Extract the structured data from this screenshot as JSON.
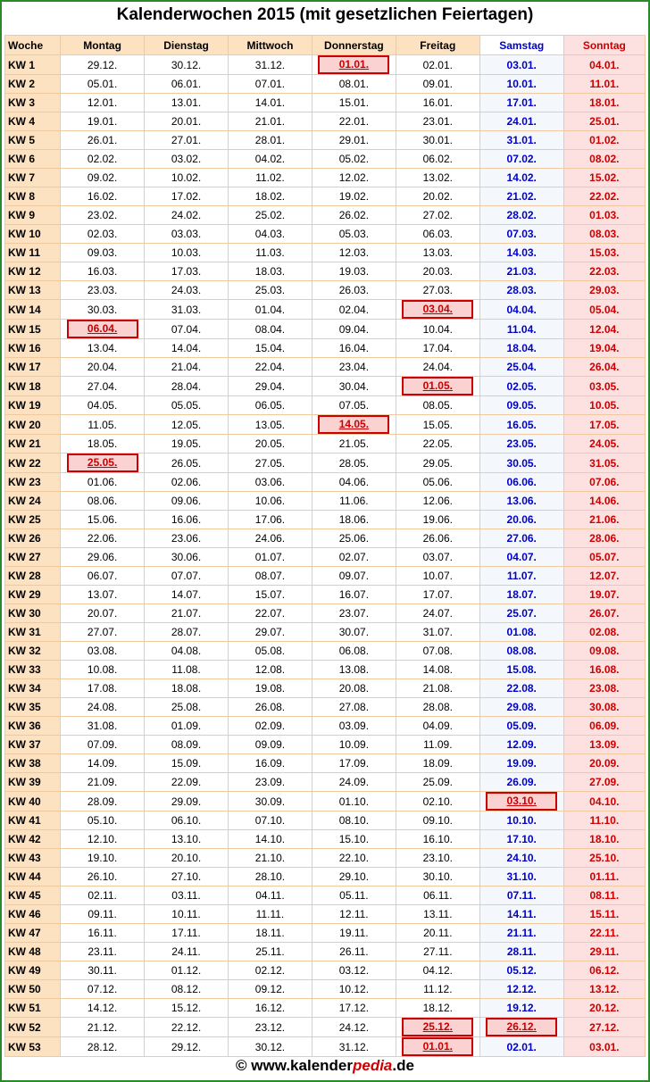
{
  "title": "Kalenderwochen 2015 (mit gesetzlichen Feiertagen)",
  "headers": [
    "Woche",
    "Montag",
    "Dienstag",
    "Mittwoch",
    "Donnerstag",
    "Freitag",
    "Samstag",
    "Sonntag"
  ],
  "holiday_note": "Holiday cells are marked in the rows below by [col index] lists",
  "rows": [
    {
      "kw": "KW 1",
      "days": [
        "29.12.",
        "30.12.",
        "31.12.",
        "01.01.",
        "02.01.",
        "03.01.",
        "04.01."
      ],
      "hol": [
        3
      ]
    },
    {
      "kw": "KW 2",
      "days": [
        "05.01.",
        "06.01.",
        "07.01.",
        "08.01.",
        "09.01.",
        "10.01.",
        "11.01."
      ],
      "hol": []
    },
    {
      "kw": "KW 3",
      "days": [
        "12.01.",
        "13.01.",
        "14.01.",
        "15.01.",
        "16.01.",
        "17.01.",
        "18.01."
      ],
      "hol": []
    },
    {
      "kw": "KW 4",
      "days": [
        "19.01.",
        "20.01.",
        "21.01.",
        "22.01.",
        "23.01.",
        "24.01.",
        "25.01."
      ],
      "hol": []
    },
    {
      "kw": "KW 5",
      "days": [
        "26.01.",
        "27.01.",
        "28.01.",
        "29.01.",
        "30.01.",
        "31.01.",
        "01.02."
      ],
      "hol": []
    },
    {
      "kw": "KW 6",
      "days": [
        "02.02.",
        "03.02.",
        "04.02.",
        "05.02.",
        "06.02.",
        "07.02.",
        "08.02."
      ],
      "hol": []
    },
    {
      "kw": "KW 7",
      "days": [
        "09.02.",
        "10.02.",
        "11.02.",
        "12.02.",
        "13.02.",
        "14.02.",
        "15.02."
      ],
      "hol": []
    },
    {
      "kw": "KW 8",
      "days": [
        "16.02.",
        "17.02.",
        "18.02.",
        "19.02.",
        "20.02.",
        "21.02.",
        "22.02."
      ],
      "hol": []
    },
    {
      "kw": "KW 9",
      "days": [
        "23.02.",
        "24.02.",
        "25.02.",
        "26.02.",
        "27.02.",
        "28.02.",
        "01.03."
      ],
      "hol": []
    },
    {
      "kw": "KW 10",
      "days": [
        "02.03.",
        "03.03.",
        "04.03.",
        "05.03.",
        "06.03.",
        "07.03.",
        "08.03."
      ],
      "hol": []
    },
    {
      "kw": "KW 11",
      "days": [
        "09.03.",
        "10.03.",
        "11.03.",
        "12.03.",
        "13.03.",
        "14.03.",
        "15.03."
      ],
      "hol": []
    },
    {
      "kw": "KW 12",
      "days": [
        "16.03.",
        "17.03.",
        "18.03.",
        "19.03.",
        "20.03.",
        "21.03.",
        "22.03."
      ],
      "hol": []
    },
    {
      "kw": "KW 13",
      "days": [
        "23.03.",
        "24.03.",
        "25.03.",
        "26.03.",
        "27.03.",
        "28.03.",
        "29.03."
      ],
      "hol": []
    },
    {
      "kw": "KW 14",
      "days": [
        "30.03.",
        "31.03.",
        "01.04.",
        "02.04.",
        "03.04.",
        "04.04.",
        "05.04."
      ],
      "hol": [
        4
      ]
    },
    {
      "kw": "KW 15",
      "days": [
        "06.04.",
        "07.04.",
        "08.04.",
        "09.04.",
        "10.04.",
        "11.04.",
        "12.04."
      ],
      "hol": [
        0
      ]
    },
    {
      "kw": "KW 16",
      "days": [
        "13.04.",
        "14.04.",
        "15.04.",
        "16.04.",
        "17.04.",
        "18.04.",
        "19.04."
      ],
      "hol": []
    },
    {
      "kw": "KW 17",
      "days": [
        "20.04.",
        "21.04.",
        "22.04.",
        "23.04.",
        "24.04.",
        "25.04.",
        "26.04."
      ],
      "hol": []
    },
    {
      "kw": "KW 18",
      "days": [
        "27.04.",
        "28.04.",
        "29.04.",
        "30.04.",
        "01.05.",
        "02.05.",
        "03.05."
      ],
      "hol": [
        4
      ]
    },
    {
      "kw": "KW 19",
      "days": [
        "04.05.",
        "05.05.",
        "06.05.",
        "07.05.",
        "08.05.",
        "09.05.",
        "10.05."
      ],
      "hol": []
    },
    {
      "kw": "KW 20",
      "days": [
        "11.05.",
        "12.05.",
        "13.05.",
        "14.05.",
        "15.05.",
        "16.05.",
        "17.05."
      ],
      "hol": [
        3
      ]
    },
    {
      "kw": "KW 21",
      "days": [
        "18.05.",
        "19.05.",
        "20.05.",
        "21.05.",
        "22.05.",
        "23.05.",
        "24.05."
      ],
      "hol": []
    },
    {
      "kw": "KW 22",
      "days": [
        "25.05.",
        "26.05.",
        "27.05.",
        "28.05.",
        "29.05.",
        "30.05.",
        "31.05."
      ],
      "hol": [
        0
      ]
    },
    {
      "kw": "KW 23",
      "days": [
        "01.06.",
        "02.06.",
        "03.06.",
        "04.06.",
        "05.06.",
        "06.06.",
        "07.06."
      ],
      "hol": []
    },
    {
      "kw": "KW 24",
      "days": [
        "08.06.",
        "09.06.",
        "10.06.",
        "11.06.",
        "12.06.",
        "13.06.",
        "14.06."
      ],
      "hol": []
    },
    {
      "kw": "KW 25",
      "days": [
        "15.06.",
        "16.06.",
        "17.06.",
        "18.06.",
        "19.06.",
        "20.06.",
        "21.06."
      ],
      "hol": []
    },
    {
      "kw": "KW 26",
      "days": [
        "22.06.",
        "23.06.",
        "24.06.",
        "25.06.",
        "26.06.",
        "27.06.",
        "28.06."
      ],
      "hol": []
    },
    {
      "kw": "KW 27",
      "days": [
        "29.06.",
        "30.06.",
        "01.07.",
        "02.07.",
        "03.07.",
        "04.07.",
        "05.07."
      ],
      "hol": []
    },
    {
      "kw": "KW 28",
      "days": [
        "06.07.",
        "07.07.",
        "08.07.",
        "09.07.",
        "10.07.",
        "11.07.",
        "12.07."
      ],
      "hol": []
    },
    {
      "kw": "KW 29",
      "days": [
        "13.07.",
        "14.07.",
        "15.07.",
        "16.07.",
        "17.07.",
        "18.07.",
        "19.07."
      ],
      "hol": []
    },
    {
      "kw": "KW 30",
      "days": [
        "20.07.",
        "21.07.",
        "22.07.",
        "23.07.",
        "24.07.",
        "25.07.",
        "26.07."
      ],
      "hol": []
    },
    {
      "kw": "KW 31",
      "days": [
        "27.07.",
        "28.07.",
        "29.07.",
        "30.07.",
        "31.07.",
        "01.08.",
        "02.08."
      ],
      "hol": []
    },
    {
      "kw": "KW 32",
      "days": [
        "03.08.",
        "04.08.",
        "05.08.",
        "06.08.",
        "07.08.",
        "08.08.",
        "09.08."
      ],
      "hol": []
    },
    {
      "kw": "KW 33",
      "days": [
        "10.08.",
        "11.08.",
        "12.08.",
        "13.08.",
        "14.08.",
        "15.08.",
        "16.08."
      ],
      "hol": []
    },
    {
      "kw": "KW 34",
      "days": [
        "17.08.",
        "18.08.",
        "19.08.",
        "20.08.",
        "21.08.",
        "22.08.",
        "23.08."
      ],
      "hol": []
    },
    {
      "kw": "KW 35",
      "days": [
        "24.08.",
        "25.08.",
        "26.08.",
        "27.08.",
        "28.08.",
        "29.08.",
        "30.08."
      ],
      "hol": []
    },
    {
      "kw": "KW 36",
      "days": [
        "31.08.",
        "01.09.",
        "02.09.",
        "03.09.",
        "04.09.",
        "05.09.",
        "06.09."
      ],
      "hol": []
    },
    {
      "kw": "KW 37",
      "days": [
        "07.09.",
        "08.09.",
        "09.09.",
        "10.09.",
        "11.09.",
        "12.09.",
        "13.09."
      ],
      "hol": []
    },
    {
      "kw": "KW 38",
      "days": [
        "14.09.",
        "15.09.",
        "16.09.",
        "17.09.",
        "18.09.",
        "19.09.",
        "20.09."
      ],
      "hol": []
    },
    {
      "kw": "KW 39",
      "days": [
        "21.09.",
        "22.09.",
        "23.09.",
        "24.09.",
        "25.09.",
        "26.09.",
        "27.09."
      ],
      "hol": []
    },
    {
      "kw": "KW 40",
      "days": [
        "28.09.",
        "29.09.",
        "30.09.",
        "01.10.",
        "02.10.",
        "03.10.",
        "04.10."
      ],
      "hol": [
        5
      ]
    },
    {
      "kw": "KW 41",
      "days": [
        "05.10.",
        "06.10.",
        "07.10.",
        "08.10.",
        "09.10.",
        "10.10.",
        "11.10."
      ],
      "hol": []
    },
    {
      "kw": "KW 42",
      "days": [
        "12.10.",
        "13.10.",
        "14.10.",
        "15.10.",
        "16.10.",
        "17.10.",
        "18.10."
      ],
      "hol": []
    },
    {
      "kw": "KW 43",
      "days": [
        "19.10.",
        "20.10.",
        "21.10.",
        "22.10.",
        "23.10.",
        "24.10.",
        "25.10."
      ],
      "hol": []
    },
    {
      "kw": "KW 44",
      "days": [
        "26.10.",
        "27.10.",
        "28.10.",
        "29.10.",
        "30.10.",
        "31.10.",
        "01.11."
      ],
      "hol": []
    },
    {
      "kw": "KW 45",
      "days": [
        "02.11.",
        "03.11.",
        "04.11.",
        "05.11.",
        "06.11.",
        "07.11.",
        "08.11."
      ],
      "hol": []
    },
    {
      "kw": "KW 46",
      "days": [
        "09.11.",
        "10.11.",
        "11.11.",
        "12.11.",
        "13.11.",
        "14.11.",
        "15.11."
      ],
      "hol": []
    },
    {
      "kw": "KW 47",
      "days": [
        "16.11.",
        "17.11.",
        "18.11.",
        "19.11.",
        "20.11.",
        "21.11.",
        "22.11."
      ],
      "hol": []
    },
    {
      "kw": "KW 48",
      "days": [
        "23.11.",
        "24.11.",
        "25.11.",
        "26.11.",
        "27.11.",
        "28.11.",
        "29.11."
      ],
      "hol": []
    },
    {
      "kw": "KW 49",
      "days": [
        "30.11.",
        "01.12.",
        "02.12.",
        "03.12.",
        "04.12.",
        "05.12.",
        "06.12."
      ],
      "hol": []
    },
    {
      "kw": "KW 50",
      "days": [
        "07.12.",
        "08.12.",
        "09.12.",
        "10.12.",
        "11.12.",
        "12.12.",
        "13.12."
      ],
      "hol": []
    },
    {
      "kw": "KW 51",
      "days": [
        "14.12.",
        "15.12.",
        "16.12.",
        "17.12.",
        "18.12.",
        "19.12.",
        "20.12."
      ],
      "hol": []
    },
    {
      "kw": "KW 52",
      "days": [
        "21.12.",
        "22.12.",
        "23.12.",
        "24.12.",
        "25.12.",
        "26.12.",
        "27.12."
      ],
      "hol": [
        4,
        5
      ]
    },
    {
      "kw": "KW 53",
      "days": [
        "28.12.",
        "29.12.",
        "30.12.",
        "31.12.",
        "01.01.",
        "02.01.",
        "03.01."
      ],
      "hol": [
        4
      ]
    }
  ],
  "footer": {
    "prefix": "© www.kalender",
    "brand": "pedia",
    "suffix": ".de"
  }
}
